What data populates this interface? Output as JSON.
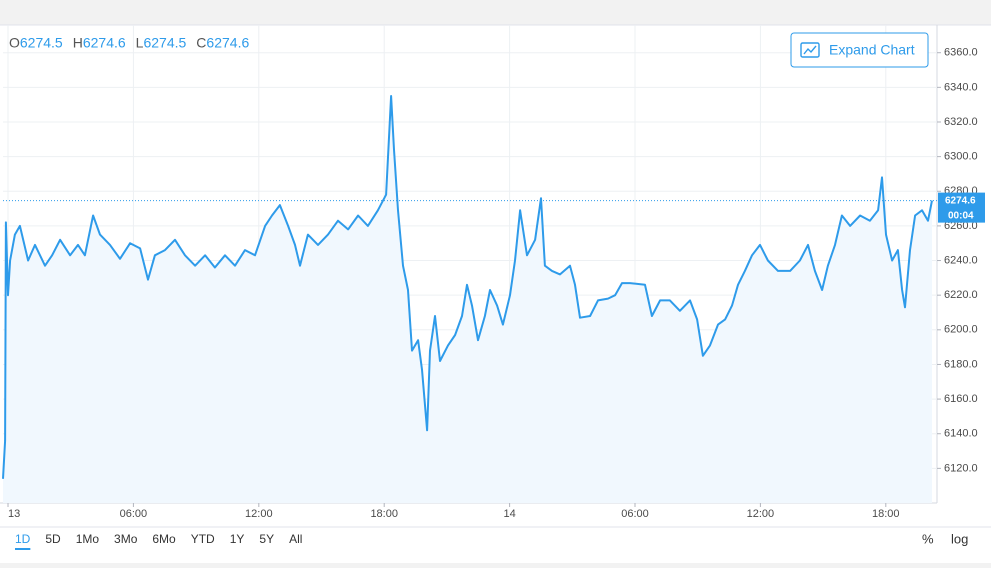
{
  "chart_data": {
    "type": "line",
    "ohlc": [
      {
        "label": "O",
        "value": 6274.5
      },
      {
        "label": "H",
        "value": 6274.6
      },
      {
        "label": "L",
        "value": 6274.5
      },
      {
        "label": "C",
        "value": 6274.6
      }
    ],
    "last_price": 6274.6,
    "countdown": "00:04",
    "expand_button": "Expand Chart",
    "ranges": [
      "1D",
      "5D",
      "1Mo",
      "3Mo",
      "6Mo",
      "YTD",
      "1Y",
      "5Y",
      "All"
    ],
    "scale_buttons": [
      "%",
      "log"
    ],
    "series": [
      {
        "name": null,
        "color": "#2e9bea",
        "x": [
          -0.24,
          -0.14,
          -0.1,
          0,
          0.1,
          0.33,
          0.57,
          0.96,
          1.29,
          1.77,
          2.11,
          2.49,
          2.97,
          3.35,
          3.68,
          4.07,
          4.4,
          4.88,
          5.36,
          5.84,
          6.32,
          6.7,
          7.03,
          7.51,
          7.99,
          8.47,
          8.95,
          9.43,
          9.9,
          10.38,
          10.86,
          11.34,
          11.82,
          12.3,
          12.63,
          13.01,
          13.4,
          13.73,
          13.97,
          14.35,
          14.83,
          15.31,
          15.79,
          16.27,
          16.75,
          17.22,
          17.7,
          18.09,
          18.33,
          18.47,
          18.66,
          18.9,
          19.14,
          19.33,
          19.62,
          19.81,
          20.05,
          20.19,
          20.43,
          20.67,
          21.05,
          21.39,
          21.72,
          21.96,
          22.2,
          22.49,
          22.82,
          23.06,
          23.4,
          23.68,
          24.02,
          24.26,
          24.5,
          24.83,
          25.22,
          25.5,
          25.69,
          26.03,
          26.41,
          26.89,
          27.13,
          27.37,
          27.85,
          28.23,
          28.71,
          29.05,
          29.38,
          29.76,
          30.48,
          30.81,
          31.2,
          31.67,
          32.15,
          32.63,
          32.97,
          33.25,
          33.59,
          33.97,
          34.31,
          34.64,
          34.93,
          35.26,
          35.6,
          35.98,
          36.36,
          36.84,
          37.42,
          37.89,
          38.28,
          38.61,
          38.95,
          39.23,
          39.57,
          39.9,
          40.29,
          40.77,
          41.24,
          41.63,
          41.82,
          42.01,
          42.3,
          42.58,
          42.78,
          42.92,
          43.16,
          43.4,
          43.73,
          44.02,
          44.21
        ],
        "values": [
          6114,
          6136,
          6262,
          6220,
          6240,
          6255,
          6260,
          6240,
          6249,
          6237,
          6243,
          6252,
          6243,
          6249,
          6243,
          6266,
          6255,
          6249,
          6241,
          6250,
          6247,
          6229,
          6243,
          6246,
          6252,
          6243,
          6237,
          6243,
          6236,
          6243,
          6237,
          6246,
          6243,
          6260,
          6266,
          6272,
          6260,
          6249,
          6237,
          6255,
          6249,
          6255,
          6263,
          6258,
          6266,
          6260,
          6269,
          6278,
          6335,
          6304,
          6269,
          6237,
          6223,
          6188,
          6194,
          6177,
          6142,
          6188,
          6208,
          6182,
          6191,
          6197,
          6208,
          6226,
          6214,
          6194,
          6208,
          6223,
          6214,
          6203,
          6220,
          6240,
          6269,
          6243,
          6252,
          6276,
          6237,
          6234,
          6232,
          6237,
          6226,
          6207,
          6208,
          6217,
          6218,
          6220,
          6227,
          6227,
          6226,
          6208,
          6217,
          6217,
          6211,
          6217,
          6206,
          6185,
          6191,
          6203,
          6206,
          6214,
          6226,
          6234,
          6243,
          6249,
          6240,
          6234,
          6234,
          6240,
          6249,
          6234,
          6223,
          6237,
          6249,
          6266,
          6260,
          6266,
          6263,
          6269,
          6288,
          6255,
          6240,
          6246,
          6223,
          6213,
          6246,
          6266,
          6269,
          6263,
          6274.6
        ]
      }
    ],
    "xlim": [
      -0.24,
      44.45
    ],
    "xticks": [
      {
        "value": 0,
        "label": "13"
      },
      {
        "value": 6,
        "label": "06:00"
      },
      {
        "value": 12,
        "label": "12:00"
      },
      {
        "value": 18,
        "label": "18:00"
      },
      {
        "value": 24,
        "label": "14"
      },
      {
        "value": 30,
        "label": "06:00"
      },
      {
        "value": 36,
        "label": "12:00"
      },
      {
        "value": 42,
        "label": "18:00"
      }
    ],
    "ylim": [
      6100,
      6376
    ],
    "yticks": [
      {
        "value": 6120,
        "label": "6120.0"
      },
      {
        "value": 6140,
        "label": "6140.0"
      },
      {
        "value": 6160,
        "label": "6160.0"
      },
      {
        "value": 6180,
        "label": "6180.0"
      },
      {
        "value": 6200,
        "label": "6200.0"
      },
      {
        "value": 6220,
        "label": "6220.0"
      },
      {
        "value": 6240,
        "label": "6240.0"
      },
      {
        "value": 6260,
        "label": "6260.0"
      },
      {
        "value": 6280,
        "label": "6280.0"
      },
      {
        "value": 6300,
        "label": "6300.0"
      },
      {
        "value": 6320,
        "label": "6320.0"
      },
      {
        "value": 6340,
        "label": "6340.0"
      },
      {
        "value": 6360,
        "label": "6360.0"
      }
    ],
    "grid": true
  }
}
